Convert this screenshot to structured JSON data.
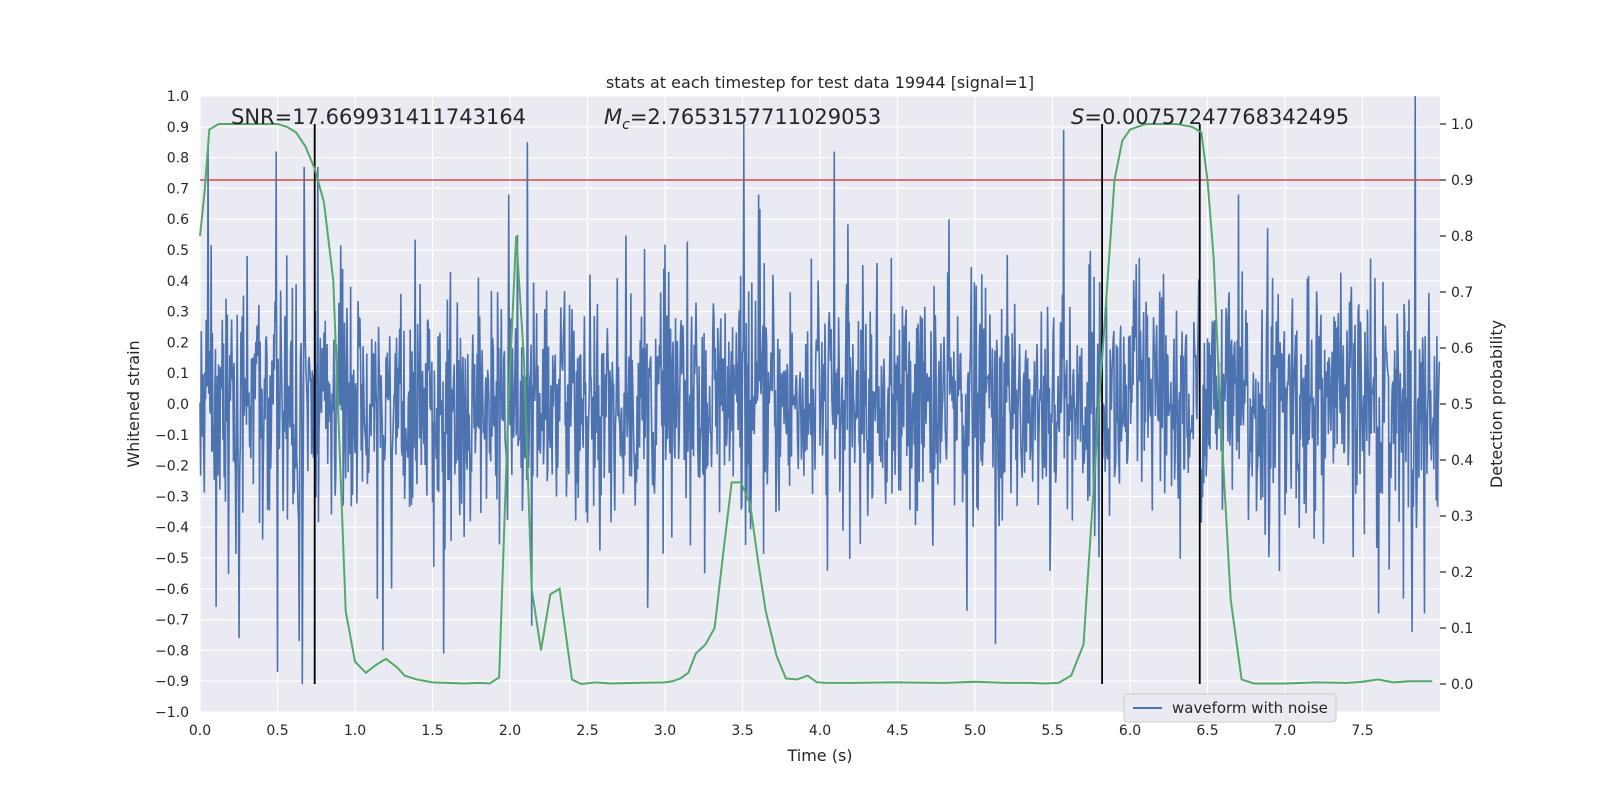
{
  "chart_data": {
    "type": "line",
    "title": "stats at each timestep for test data 19944 [signal=1]",
    "xlabel": "Time (s)",
    "ylabel_left": "Whitened strain",
    "ylabel_right": "Detection probability",
    "xlim": [
      0,
      8
    ],
    "ylim_left": [
      -1.0,
      1.0
    ],
    "ylim_right": [
      -0.05,
      1.05
    ],
    "xticks": [
      "0.0",
      "0.5",
      "1.0",
      "1.5",
      "2.0",
      "2.5",
      "3.0",
      "3.5",
      "4.0",
      "4.5",
      "5.0",
      "5.5",
      "6.0",
      "6.5",
      "7.0",
      "7.5"
    ],
    "yticks_left": [
      "-1.0",
      "-0.9",
      "-0.8",
      "-0.7",
      "-0.6",
      "-0.5",
      "-0.4",
      "-0.3",
      "-0.2",
      "-0.1",
      "0.0",
      "0.1",
      "0.2",
      "0.3",
      "0.4",
      "0.5",
      "0.6",
      "0.7",
      "0.8",
      "0.9",
      "1.0"
    ],
    "yticks_right": [
      "0.0",
      "0.1",
      "0.2",
      "0.3",
      "0.4",
      "0.5",
      "0.6",
      "0.7",
      "0.8",
      "0.9",
      "1.0"
    ],
    "grid": true,
    "legend_position": "bottom-right",
    "colors": {
      "background": "#eaeaf2",
      "grid": "#ffffff",
      "waveform": "#4c72b0",
      "probability": "#55a868",
      "threshold": "#c44e52",
      "markers": "#000000"
    },
    "annotations": {
      "snr_label": "SNR=17.669931411743164",
      "mc_prefix": "M",
      "mc_sub": "c",
      "mc_value": "=2.7653157711029053",
      "s_prefix": "S",
      "s_value": "=0.007572477683424​95"
    },
    "threshold_prob": 0.9,
    "vlines": [
      0.74,
      5.82,
      6.45
    ],
    "waveform": {
      "name": "waveform with noise",
      "dt": 0.004,
      "n_samples": 2000,
      "typical_amplitude": 0.45,
      "peaks": [
        {
          "t": 0.05,
          "v": 0.83
        },
        {
          "t": 0.49,
          "v": 0.82
        },
        {
          "t": 0.67,
          "v": 0.77
        },
        {
          "t": 0.76,
          "v": 0.77
        },
        {
          "t": 2.11,
          "v": 0.85
        },
        {
          "t": 3.51,
          "v": 0.91
        },
        {
          "t": 4.09,
          "v": 0.82
        },
        {
          "t": 5.57,
          "v": 0.89
        },
        {
          "t": 7.84,
          "v": 1.0
        },
        {
          "t": 0.66,
          "v": -0.91
        },
        {
          "t": 0.5,
          "v": -0.87
        },
        {
          "t": 0.64,
          "v": -0.77
        },
        {
          "t": 0.25,
          "v": -0.76
        },
        {
          "t": 1.18,
          "v": -0.8
        },
        {
          "t": 1.57,
          "v": -0.81
        },
        {
          "t": 5.13,
          "v": -0.78
        },
        {
          "t": 7.82,
          "v": -0.74
        },
        {
          "t": 2.14,
          "v": -0.72
        }
      ]
    },
    "probability": {
      "name": "detection probability",
      "x": [
        0.0,
        0.03,
        0.06,
        0.12,
        0.2,
        0.3,
        0.4,
        0.5,
        0.56,
        0.62,
        0.68,
        0.74,
        0.8,
        0.86,
        0.94,
        1.0,
        1.07,
        1.14,
        1.2,
        1.27,
        1.32,
        1.4,
        1.5,
        1.6,
        1.7,
        1.8,
        1.87,
        1.93,
        1.99,
        2.04,
        2.09,
        2.14,
        2.2,
        2.26,
        2.32,
        2.4,
        2.46,
        2.55,
        2.65,
        2.8,
        3.0,
        3.05,
        3.1,
        3.15,
        3.2,
        3.26,
        3.32,
        3.37,
        3.43,
        3.49,
        3.55,
        3.6,
        3.65,
        3.72,
        3.78,
        3.85,
        3.92,
        3.98,
        4.05,
        4.2,
        4.5,
        4.8,
        5.0,
        5.2,
        5.35,
        5.45,
        5.54,
        5.62,
        5.7,
        5.8,
        5.9,
        5.95,
        6.0,
        6.1,
        6.3,
        6.4,
        6.46,
        6.5,
        6.54,
        6.58,
        6.65,
        6.72,
        6.8,
        7.0,
        7.2,
        7.4,
        7.5,
        7.6,
        7.7,
        7.8,
        7.95
      ],
      "y": [
        0.8,
        0.88,
        0.99,
        1.0,
        1.0,
        1.0,
        1.0,
        1.0,
        0.995,
        0.985,
        0.96,
        0.92,
        0.86,
        0.72,
        0.13,
        0.04,
        0.02,
        0.035,
        0.045,
        0.03,
        0.015,
        0.008,
        0.003,
        0.002,
        0.001,
        0.002,
        0.001,
        0.012,
        0.5,
        0.8,
        0.58,
        0.17,
        0.06,
        0.16,
        0.17,
        0.008,
        0.0,
        0.003,
        0.001,
        0.002,
        0.003,
        0.005,
        0.01,
        0.02,
        0.055,
        0.07,
        0.1,
        0.22,
        0.36,
        0.36,
        0.32,
        0.22,
        0.13,
        0.05,
        0.01,
        0.008,
        0.015,
        0.003,
        0.002,
        0.002,
        0.003,
        0.002,
        0.004,
        0.002,
        0.002,
        0.001,
        0.002,
        0.015,
        0.07,
        0.5,
        0.9,
        0.97,
        0.99,
        1.0,
        1.0,
        0.995,
        0.985,
        0.9,
        0.76,
        0.5,
        0.15,
        0.008,
        0.001,
        0.001,
        0.003,
        0.002,
        0.004,
        0.008,
        0.003,
        0.005,
        0.005
      ]
    }
  }
}
